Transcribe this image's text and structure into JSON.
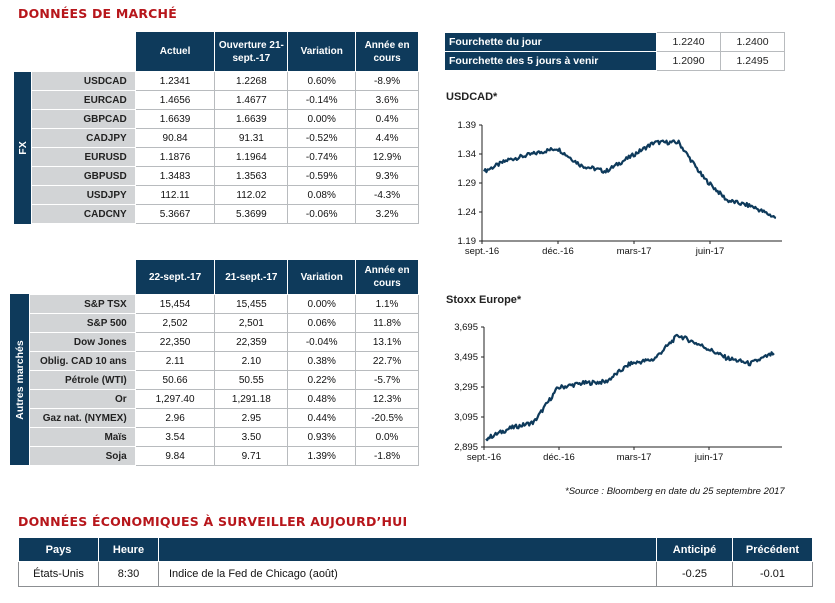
{
  "market": {
    "title": "DONNÉES DE MARCHÉ",
    "fx_label": "FX",
    "other_label": "Autres marchés",
    "fx_headers": [
      "Actuel",
      "Ouverture 21-sept.-17",
      "Variation",
      "Année en cours"
    ],
    "fx_rows": [
      {
        "name": "USDCAD",
        "current": "1.2341",
        "open": "1.2268",
        "change": "0.60%",
        "ytd": "-8.9%"
      },
      {
        "name": "EURCAD",
        "current": "1.4656",
        "open": "1.4677",
        "change": "-0.14%",
        "ytd": "3.6%"
      },
      {
        "name": "GBPCAD",
        "current": "1.6639",
        "open": "1.6639",
        "change": "0.00%",
        "ytd": "0.4%"
      },
      {
        "name": "CADJPY",
        "current": "90.84",
        "open": "91.31",
        "change": "-0.52%",
        "ytd": "4.4%"
      },
      {
        "name": "EURUSD",
        "current": "1.1876",
        "open": "1.1964",
        "change": "-0.74%",
        "ytd": "12.9%"
      },
      {
        "name": "GBPUSD",
        "current": "1.3483",
        "open": "1.3563",
        "change": "-0.59%",
        "ytd": "9.3%"
      },
      {
        "name": "USDJPY",
        "current": "112.11",
        "open": "112.02",
        "change": "0.08%",
        "ytd": "-4.3%"
      },
      {
        "name": "CADCNY",
        "current": "5.3667",
        "open": "5.3699",
        "change": "-0.06%",
        "ytd": "3.2%"
      }
    ],
    "other_headers": [
      "22-sept.-17",
      "21-sept.-17",
      "Variation",
      "Année en cours"
    ],
    "other_rows": [
      {
        "name": "S&P TSX",
        "current": "15,454",
        "open": "15,455",
        "change": "0.00%",
        "ytd": "1.1%"
      },
      {
        "name": "S&P 500",
        "current": "2,502",
        "open": "2,501",
        "change": "0.06%",
        "ytd": "11.8%"
      },
      {
        "name": "Dow Jones",
        "current": "22,350",
        "open": "22,359",
        "change": "-0.04%",
        "ytd": "13.1%"
      },
      {
        "name": "Oblig. CAD 10 ans",
        "current": "2.11",
        "open": "2.10",
        "change": "0.38%",
        "ytd": "22.7%"
      },
      {
        "name": "Pétrole (WTI)",
        "current": "50.66",
        "open": "50.55",
        "change": "0.22%",
        "ytd": "-5.7%"
      },
      {
        "name": "Or",
        "current": "1,297.40",
        "open": "1,291.18",
        "change": "0.48%",
        "ytd": "12.3%"
      },
      {
        "name": "Gaz nat. (NYMEX)",
        "current": "2.96",
        "open": "2.95",
        "change": "0.44%",
        "ytd": "-20.5%"
      },
      {
        "name": "Maïs",
        "current": "3.54",
        "open": "3.50",
        "change": "0.93%",
        "ytd": "0.0%"
      },
      {
        "name": "Soja",
        "current": "9.84",
        "open": "9.71",
        "change": "1.39%",
        "ytd": "-1.8%"
      }
    ],
    "ranges": [
      {
        "label": "Fourchette du jour",
        "low": "1.2240",
        "high": "1.2400"
      },
      {
        "label": "Fourchette des 5 jours à venir",
        "low": "1.2090",
        "high": "1.2495"
      }
    ],
    "source": "*Source : Bloomberg en date du  25 septembre 2017"
  },
  "colors": {
    "navy": "#0e3a5b",
    "red": "#b7161b",
    "green": "#1f9a36",
    "negative": "#d61e1e",
    "label_bg": "#d2d4d6"
  },
  "chart_data": [
    {
      "type": "line",
      "title": "USDCAD*",
      "xticks": [
        "sept.-16",
        "déc.-16",
        "mars-17",
        "juin-17"
      ],
      "yticks": [
        "1.39",
        "1.34",
        "1.29",
        "1.24",
        "1.19"
      ],
      "ylim": [
        1.19,
        1.39
      ],
      "grid": false,
      "series": [
        {
          "x": [
            "2016-09",
            "2016-10",
            "2016-11",
            "2016-12",
            "2017-01",
            "2017-02",
            "2017-03",
            "2017-04",
            "2017-05",
            "2017-06",
            "2017-07",
            "2017-08",
            "2017-09"
          ],
          "values": [
            1.31,
            1.33,
            1.34,
            1.35,
            1.32,
            1.31,
            1.335,
            1.36,
            1.36,
            1.3,
            1.26,
            1.25,
            1.23
          ]
        }
      ]
    },
    {
      "type": "line",
      "title": "Stoxx Europe*",
      "xticks": [
        "sept.-16",
        "déc.-16",
        "mars-17",
        "juin-17"
      ],
      "yticks": [
        "3,695",
        "3,495",
        "3,295",
        "3,095",
        "2,895"
      ],
      "ylim": [
        2895,
        3695
      ],
      "grid": false,
      "series": [
        {
          "x": [
            "2016-09",
            "2016-10",
            "2016-11",
            "2016-12",
            "2017-01",
            "2017-02",
            "2017-03",
            "2017-04",
            "2017-05",
            "2017-06",
            "2017-07",
            "2017-08",
            "2017-09"
          ],
          "values": [
            2950,
            3020,
            3060,
            3290,
            3320,
            3330,
            3450,
            3480,
            3640,
            3570,
            3490,
            3450,
            3520
          ]
        }
      ]
    }
  ],
  "economic": {
    "title": "DONNÉES ÉCONOMIQUES À SURVEILLER AUJOURD’HUI",
    "headers": [
      "Pays",
      "Heure",
      "",
      "Anticipé",
      "Précédent"
    ],
    "rows": [
      {
        "country": "États-Unis",
        "time": "8:30",
        "indicator": "Indice de la Fed de Chicago (août)",
        "expected": "-0.25",
        "previous": "-0.01"
      }
    ]
  }
}
